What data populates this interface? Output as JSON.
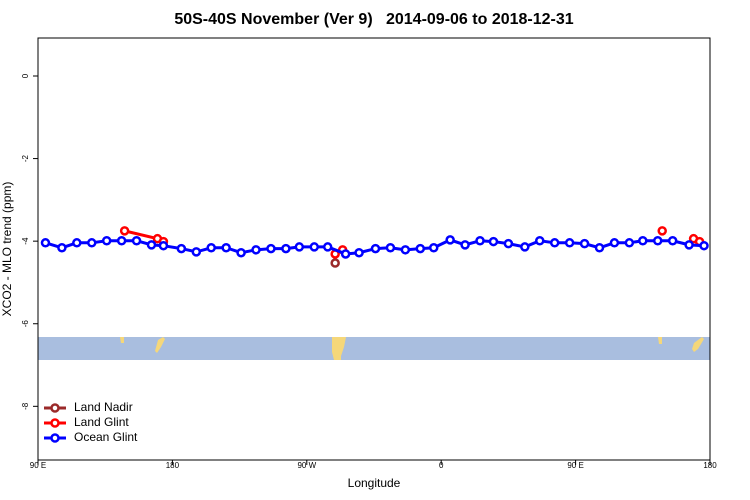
{
  "chart_data": {
    "type": "line",
    "title": "50S-40S November (Ver 9)   2014-09-06 to 2018-12-31",
    "xlabel": "Longitude",
    "ylabel": "XCO2 - MLO trend (ppm)",
    "xlim": [
      90,
      540
    ],
    "ylim": [
      -9.3,
      0.92
    ],
    "xticks": [
      {
        "value": 90,
        "label": "90 E"
      },
      180,
      {
        "value": 270,
        "label": "90 W"
      },
      {
        "value": 360,
        "label": "0"
      },
      {
        "value": 450,
        "label": "90 E"
      },
      {
        "value": 540,
        "label": "180"
      }
    ],
    "yticks": [
      0,
      -2,
      -4,
      -6,
      -8
    ],
    "legend": "bottom-left",
    "series": [
      {
        "name": "Land Nadir",
        "color": "#9b2a2a",
        "x": [
          289
        ],
        "values": [
          -4.53
        ]
      },
      {
        "name": "Land Glint",
        "color": "#ff0000",
        "x": [
          148,
          170,
          174,
          null,
          289,
          294,
          null,
          508,
          null,
          529,
          533
        ],
        "values": [
          -3.75,
          -3.94,
          -4.01,
          null,
          -4.31,
          -4.21,
          null,
          -3.75,
          null,
          -3.94,
          -4.01
        ]
      },
      {
        "name": "Ocean Glint",
        "color": "#0000ff",
        "x": [
          95,
          106,
          116,
          126,
          136,
          146,
          156,
          166,
          174,
          186,
          196,
          206,
          216,
          226,
          236,
          246,
          256,
          265,
          275,
          284,
          296,
          305,
          316,
          326,
          336,
          346,
          355,
          366,
          376,
          386,
          395,
          405,
          416,
          426,
          436,
          446,
          456,
          466,
          476,
          486,
          495,
          505,
          515,
          526,
          536
        ],
        "values": [
          -4.04,
          -4.16,
          -4.04,
          -4.04,
          -3.99,
          -3.99,
          -3.99,
          -4.09,
          -4.11,
          -4.18,
          -4.26,
          -4.16,
          -4.16,
          -4.28,
          -4.21,
          -4.18,
          -4.18,
          -4.14,
          -4.14,
          -4.14,
          -4.31,
          -4.28,
          -4.18,
          -4.16,
          -4.21,
          -4.18,
          -4.16,
          -3.97,
          -4.09,
          -3.99,
          -4.01,
          -4.06,
          -4.14,
          -3.99,
          -4.04,
          -4.04,
          -4.06,
          -4.16,
          -4.04,
          -4.04,
          -3.99,
          -3.99,
          -3.99,
          -4.09,
          -4.11
        ]
      }
    ]
  }
}
